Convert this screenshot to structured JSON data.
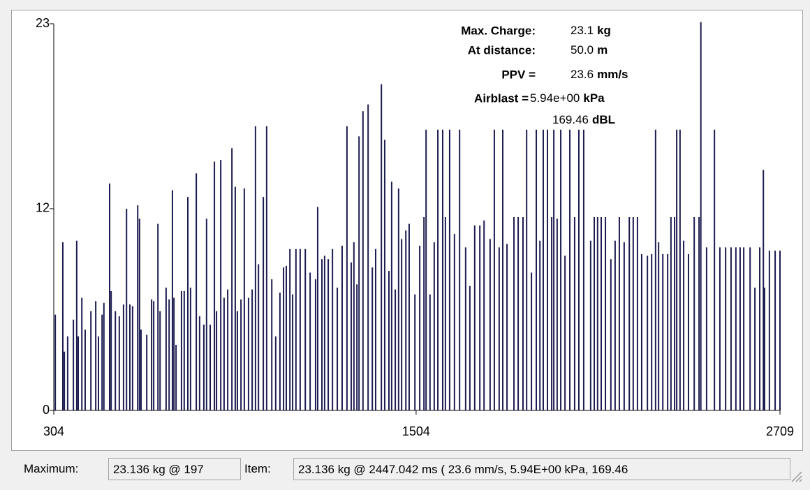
{
  "chart_data": {
    "type": "stem",
    "color": "#1c1c50",
    "xlim": [
      304,
      2709
    ],
    "xticks": [
      304,
      1504,
      2709
    ],
    "ylim": [
      0,
      23
    ],
    "yticks": [
      0,
      12,
      23
    ],
    "x": [
      309,
      334,
      339,
      350,
      369,
      380,
      385,
      397,
      408,
      427,
      443,
      452,
      464,
      470,
      489,
      494,
      508,
      521,
      535,
      545,
      556,
      565,
      582,
      588,
      593,
      612,
      628,
      635,
      649,
      656,
      676,
      686,
      697,
      702,
      709,
      727,
      736,
      748,
      757,
      776,
      787,
      801,
      810,
      822,
      836,
      843,
      857,
      868,
      880,
      894,
      905,
      912,
      924,
      935,
      949,
      961,
      972,
      982,
      998,
      1009,
      1026,
      1039,
      1053,
      1065,
      1074,
      1086,
      1095,
      1106,
      1120,
      1137,
      1153,
      1171,
      1178,
      1192,
      1201,
      1213,
      1227,
      1243,
      1259,
      1275,
      1289,
      1298,
      1308,
      1315,
      1328,
      1345,
      1359,
      1370,
      1389,
      1400,
      1414,
      1423,
      1435,
      1446,
      1456,
      1470,
      1481,
      1500,
      1516,
      1530,
      1537,
      1550,
      1564,
      1576,
      1592,
      1601,
      1615,
      1631,
      1648,
      1668,
      1682,
      1698,
      1715,
      1729,
      1749,
      1763,
      1779,
      1791,
      1805,
      1828,
      1842,
      1858,
      1870,
      1886,
      1902,
      1914,
      1925,
      1939,
      1953,
      1960,
      1971,
      1983,
      1997,
      2013,
      2029,
      2043,
      2059,
      2082,
      2094,
      2105,
      2117,
      2131,
      2149,
      2163,
      2177,
      2193,
      2210,
      2223,
      2237,
      2251,
      2270,
      2284,
      2297,
      2307,
      2321,
      2337,
      2348,
      2360,
      2367,
      2378,
      2390,
      2406,
      2425,
      2441,
      2447,
      2466,
      2492,
      2510,
      2529,
      2547,
      2563,
      2577,
      2589,
      2610,
      2626,
      2642,
      2654,
      2658,
      2674,
      2693,
      2709
    ],
    "values": [
      5.7,
      10.0,
      3.5,
      4.4,
      5.4,
      10.1,
      4.4,
      6.7,
      4.8,
      5.9,
      6.5,
      4.4,
      5.7,
      6.4,
      13.5,
      7.1,
      5.9,
      5.6,
      6.3,
      12.0,
      6.3,
      6.2,
      12.2,
      11.4,
      4.8,
      4.5,
      6.6,
      6.5,
      11.1,
      5.9,
      7.3,
      6.6,
      13.1,
      6.7,
      3.9,
      7.1,
      7.1,
      12.7,
      7.3,
      14.1,
      5.6,
      5.1,
      11.4,
      5.1,
      14.8,
      5.9,
      14.9,
      6.7,
      7.2,
      15.6,
      13.3,
      5.9,
      6.6,
      13.2,
      6.7,
      7.2,
      16.9,
      8.7,
      12.7,
      16.9,
      7.8,
      4.4,
      7.0,
      8.5,
      8.6,
      9.6,
      6.9,
      9.6,
      9.6,
      9.6,
      8.2,
      7.8,
      12.1,
      9.0,
      9.2,
      9.0,
      9.6,
      7.3,
      9.8,
      16.9,
      8.8,
      10.0,
      7.5,
      16.3,
      17.8,
      18.2,
      8.5,
      9.6,
      19.4,
      16.1,
      8.3,
      13.6,
      7.2,
      13.2,
      10.2,
      10.7,
      11.1,
      6.9,
      9.8,
      11.5,
      16.7,
      6.9,
      10.0,
      16.7,
      16.7,
      11.5,
      16.7,
      10.5,
      16.7,
      9.7,
      7.4,
      11.0,
      11.0,
      11.3,
      10.2,
      16.7,
      9.7,
      16.7,
      9.9,
      11.5,
      11.5,
      11.5,
      16.7,
      8.2,
      16.7,
      10.1,
      16.7,
      16.7,
      11.5,
      16.7,
      11.4,
      16.7,
      9.2,
      16.7,
      11.5,
      16.7,
      16.7,
      10.1,
      11.5,
      11.5,
      11.5,
      11.5,
      9.0,
      10.1,
      11.5,
      10.0,
      11.5,
      11.5,
      11.5,
      9.3,
      9.2,
      9.3,
      16.7,
      10.0,
      9.3,
      9.3,
      11.5,
      11.5,
      16.7,
      16.7,
      10.1,
      9.3,
      11.5,
      11.5,
      23.1,
      9.7,
      16.7,
      9.7,
      9.7,
      9.7,
      9.7,
      9.7,
      9.7,
      9.7,
      7.3,
      9.7,
      14.3,
      7.3,
      9.5,
      9.5,
      9.5
    ],
    "annotation": [
      {
        "label": "Max. Charge:",
        "value": "23.1",
        "unit": "kg"
      },
      {
        "label": "At distance:",
        "value": "50.0",
        "unit": "m"
      },
      {
        "label": "PPV =",
        "value": "23.6",
        "unit": "mm/s"
      },
      {
        "label": "Airblast =",
        "value": "5.94e+00",
        "unit": "kPa"
      },
      {
        "value": "169.46",
        "unit": "dBL"
      }
    ]
  },
  "status": {
    "maximum_label": "Maximum:",
    "maximum_value": "23.136 kg @ 197",
    "item_label": "Item:",
    "item_value": "23.136 kg @ 2447.042 ms  ( 23.6 mm/s, 5.94E+00 kPa, 169.46"
  }
}
